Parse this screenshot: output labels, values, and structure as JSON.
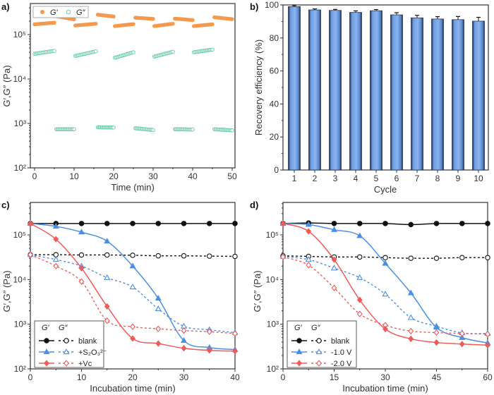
{
  "chart_data": [
    {
      "panel": "a)",
      "type": "scatter",
      "xlabel": "Time (min)",
      "ylabel": "G′,G″ (Pa)",
      "xlim": [
        0,
        50
      ],
      "ylim": [
        100,
        500000
      ],
      "yscale": "log",
      "xticks": [
        "0",
        "10",
        "20",
        "30",
        "40",
        "50"
      ],
      "yticks": [
        "10²",
        "10³",
        "10⁴",
        "10⁵"
      ],
      "legend": [
        "G′",
        "G″"
      ],
      "legend_position": "top-left",
      "colors": {
        "G′": "#f39a4f",
        "G″": "#6fcdb0"
      },
      "segments": [
        {
          "t": [
            0,
            5
          ],
          "G′": [
            170000,
            185000
          ],
          "G″": [
            37000,
            43000
          ]
        },
        {
          "t": [
            5.5,
            10
          ],
          "G′": [
            260000,
            220000
          ],
          "G″": [
            740,
            740
          ]
        },
        {
          "t": [
            10.3,
            15.5
          ],
          "G′": [
            160000,
            175000
          ],
          "G″": [
            33000,
            42000
          ]
        },
        {
          "t": [
            16,
            20
          ],
          "G′": [
            280000,
            255000
          ],
          "G″": [
            820,
            810
          ]
        },
        {
          "t": [
            20.3,
            25
          ],
          "G′": [
            155000,
            172000
          ],
          "G″": [
            30000,
            40000
          ]
        },
        {
          "t": [
            25.5,
            30
          ],
          "G′": [
            240000,
            225000
          ],
          "G″": [
            780,
            710
          ]
        },
        {
          "t": [
            30.3,
            35
          ],
          "G′": [
            155000,
            175000
          ],
          "G″": [
            32000,
            41000
          ]
        },
        {
          "t": [
            35.5,
            40
          ],
          "G′": [
            228000,
            212000
          ],
          "G″": [
            740,
            730
          ]
        },
        {
          "t": [
            40.3,
            45
          ],
          "G′": [
            155000,
            170000
          ],
          "G″": [
            40000,
            46000
          ]
        },
        {
          "t": [
            45.5,
            50
          ],
          "G′": [
            245000,
            222000
          ],
          "G″": [
            740,
            700
          ]
        }
      ]
    },
    {
      "panel": "b)",
      "type": "bar",
      "xlabel": "Cycle",
      "ylabel": "Recovery efficiency (%)",
      "categories": [
        "1",
        "2",
        "3",
        "4",
        "5",
        "6",
        "7",
        "8",
        "9",
        "10"
      ],
      "values": [
        99,
        97,
        96.7,
        95.5,
        96.5,
        94,
        92.2,
        91.5,
        91.1,
        90.2
      ],
      "errors": [
        0.6,
        0.6,
        0.6,
        0.9,
        0.7,
        1.3,
        1.5,
        1.4,
        1.9,
        2.3
      ],
      "ylim": [
        0,
        100
      ],
      "yticks": [
        "0",
        "20",
        "40",
        "60",
        "80",
        "100"
      ],
      "color": "#7aa8e8"
    },
    {
      "panel": "c)",
      "type": "line",
      "xlabel": "Incubation time (min)",
      "ylabel": "G′,G″ (Pa)",
      "xlim": [
        0,
        40
      ],
      "ylim": [
        100,
        500000
      ],
      "yscale": "log",
      "xticks": [
        "0",
        "10",
        "20",
        "30",
        "40"
      ],
      "yticks": [
        "10²",
        "10³",
        "10⁴",
        "10⁵"
      ],
      "legend_header": [
        "G′",
        "G″"
      ],
      "legend_position": "bottom-left",
      "x": [
        0,
        5,
        10,
        15,
        20,
        25,
        30,
        35,
        40
      ],
      "series": [
        {
          "name": "blank",
          "color": "#111111",
          "Gp": [
            180000,
            180000,
            180000,
            180000,
            180000,
            180000,
            180000,
            180000,
            180000
          ],
          "Gpp": [
            36000,
            36000,
            35500,
            35500,
            35000,
            34000,
            34000,
            33500,
            33000
          ],
          "markerGp": "circle",
          "markerGpp": "circle-open"
        },
        {
          "name": "+S₂O₃²⁻",
          "color": "#4a90e2",
          "Gp": [
            180000,
            155000,
            115000,
            72000,
            20000,
            3800,
            430,
            300,
            270
          ],
          "Gpp": [
            36000,
            28000,
            20000,
            11000,
            6800,
            2200,
            900,
            750,
            650
          ],
          "markerGp": "triangle",
          "markerGpp": "triangle-open"
        },
        {
          "name": "+Vc",
          "color": "#ef5a5a",
          "Gp": [
            180000,
            80000,
            18000,
            2500,
            480,
            370,
            290,
            260,
            250
          ],
          "Gpp": [
            36000,
            20000,
            9000,
            1200,
            880,
            790,
            720,
            680,
            620
          ],
          "markerGp": "diamond",
          "markerGpp": "diamond-open"
        }
      ]
    },
    {
      "panel": "d)",
      "type": "line",
      "xlabel": "Incubation time (min)",
      "ylabel": "G′,G″ (Pa)",
      "xlim": [
        0,
        60
      ],
      "ylim": [
        100,
        500000
      ],
      "yscale": "log",
      "xticks": [
        "0",
        "15",
        "30",
        "45",
        "60"
      ],
      "yticks": [
        "10²",
        "10³",
        "10⁴",
        "10⁵"
      ],
      "legend_header": [
        "G′",
        "G″"
      ],
      "legend_position": "bottom-left",
      "x": [
        0,
        7.5,
        15,
        22.5,
        30,
        37.5,
        45,
        52.5,
        60
      ],
      "series": [
        {
          "name": "blank",
          "color": "#111111",
          "Gp": [
            180000,
            185000,
            180000,
            180000,
            180000,
            170000,
            180000,
            180000,
            180000
          ],
          "Gpp": [
            34000,
            33000,
            32000,
            32000,
            31000,
            30000,
            30000,
            31000,
            31000
          ],
          "markerGp": "circle",
          "markerGpp": "circle-open"
        },
        {
          "name": "-1.0 V",
          "color": "#4a90e2",
          "Gp": [
            180000,
            170000,
            130000,
            95000,
            23000,
            5000,
            850,
            500,
            380
          ],
          "Gpp": [
            33000,
            28000,
            18000,
            11000,
            4700,
            1400,
            900,
            640,
            620
          ],
          "markerGp": "triangle",
          "markerGpp": "triangle-open"
        },
        {
          "name": "-2.0 V",
          "color": "#ef5a5a",
          "Gp": [
            180000,
            120000,
            28000,
            3500,
            780,
            470,
            390,
            360,
            340
          ],
          "Gpp": [
            32000,
            21000,
            6500,
            1700,
            950,
            700,
            650,
            620,
            600
          ],
          "markerGp": "diamond",
          "markerGpp": "diamond-open"
        }
      ]
    }
  ]
}
